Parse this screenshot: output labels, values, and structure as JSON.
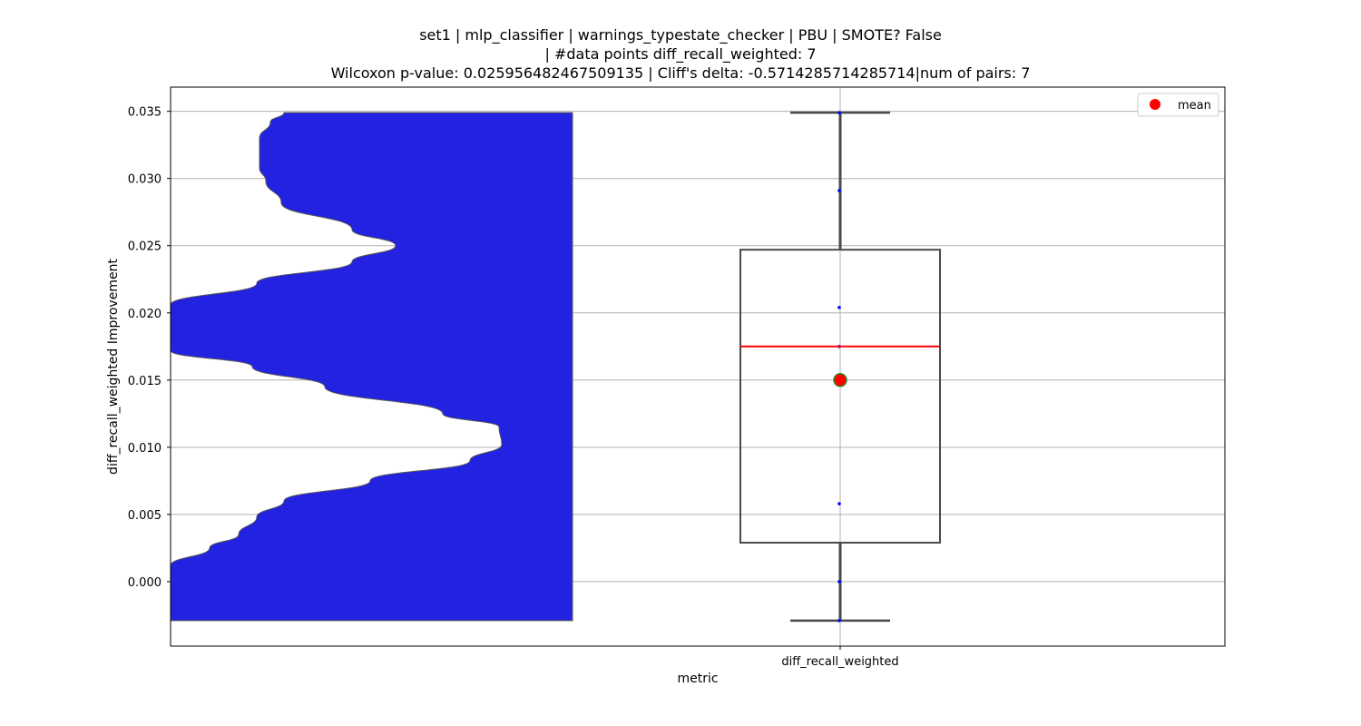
{
  "chart_data": {
    "type": "box",
    "title_lines": [
      "set1 | mlp_classifier | warnings_typestate_checker | PBU | SMOTE? False",
      "| #data points diff_recall_weighted: 7",
      "Wilcoxon p-value: 0.025956482467509135 | Cliff's delta: -0.5714285714285714|num of pairs: 7"
    ],
    "xlabel": "metric",
    "ylabel": "diff_recall_weighted Improvement",
    "categories": [
      "diff_recall_weighted"
    ],
    "ylim": [
      -0.0048,
      0.0368
    ],
    "yticks": [
      0.0,
      0.005,
      0.01,
      0.015,
      0.02,
      0.025,
      0.03,
      0.035
    ],
    "ytick_labels": [
      "0.000",
      "0.005",
      "0.010",
      "0.015",
      "0.020",
      "0.025",
      "0.030",
      "0.035"
    ],
    "grid": true,
    "legend": {
      "position": "top-right",
      "entries": [
        {
          "label": "mean",
          "color": "#ff0000",
          "marker": "circle"
        }
      ]
    },
    "box": {
      "whisker_low": -0.0029,
      "q1": 0.0029,
      "median": 0.0175,
      "q3": 0.0247,
      "whisker_high": 0.0349,
      "mean": 0.015,
      "points": [
        -0.0029,
        0.0,
        0.0058,
        0.0175,
        0.0204,
        0.0291,
        0.0349
      ],
      "box_edge_color": "#4a4a4a",
      "median_color": "#ff0000",
      "mean_color": "#ff0000",
      "mean_edge_color": "#2e8b2e",
      "point_color": "#0000ff"
    },
    "half_violin": {
      "color": "#2222e0",
      "edge_color": "#555555",
      "range": [
        -0.0029,
        0.0349
      ],
      "profile": [
        [
          -0.0029,
          0.0
        ],
        [
          0.0012,
          0.0
        ],
        [
          0.0025,
          0.043
        ],
        [
          0.0035,
          0.075
        ],
        [
          0.0048,
          0.095
        ],
        [
          0.006,
          0.125
        ],
        [
          0.0075,
          0.22
        ],
        [
          0.009,
          0.33
        ],
        [
          0.0102,
          0.365
        ],
        [
          0.0115,
          0.362
        ],
        [
          0.0125,
          0.3
        ],
        [
          0.0145,
          0.17
        ],
        [
          0.016,
          0.09
        ],
        [
          0.0172,
          0.0
        ],
        [
          0.0206,
          0.0
        ],
        [
          0.0222,
          0.095
        ],
        [
          0.0238,
          0.2
        ],
        [
          0.025,
          0.248
        ],
        [
          0.0262,
          0.2
        ],
        [
          0.0282,
          0.122
        ],
        [
          0.0298,
          0.105
        ],
        [
          0.0308,
          0.098
        ],
        [
          0.033,
          0.098
        ],
        [
          0.0342,
          0.11
        ],
        [
          0.0349,
          0.125
        ]
      ]
    }
  }
}
